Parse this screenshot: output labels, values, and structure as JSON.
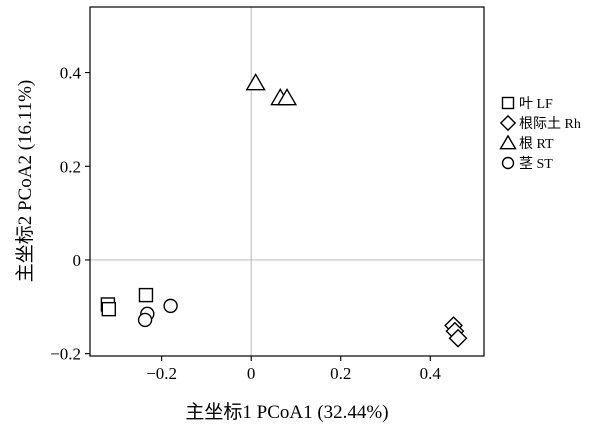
{
  "chart_data": {
    "type": "scatter",
    "xlabel": "主坐标1 PCoA1 (32.44%)",
    "ylabel": "主坐标2 PCoA2 (16.11%)",
    "xlim": [
      -0.36,
      0.52
    ],
    "ylim": [
      -0.205,
      0.54
    ],
    "x_ticks": [
      -0.2,
      0,
      0.2,
      0.4
    ],
    "x_tick_labels": [
      "−0.2",
      "0",
      "0.2",
      "0.4"
    ],
    "y_ticks": [
      -0.2,
      0,
      0.2,
      0.4
    ],
    "y_tick_labels": [
      "−0.2",
      "0",
      "0.2",
      "0.4"
    ],
    "reference_lines": {
      "x": 0,
      "y": 0
    },
    "legend_position": "right",
    "series": [
      {
        "name": "叶 LF",
        "marker": "square",
        "points": [
          [
            -0.32,
            -0.095
          ],
          [
            -0.318,
            -0.105
          ],
          [
            -0.235,
            -0.075
          ]
        ]
      },
      {
        "name": "根际土 Rh",
        "marker": "diamond",
        "points": [
          [
            0.452,
            -0.14
          ],
          [
            0.455,
            -0.152
          ],
          [
            0.462,
            -0.167
          ]
        ]
      },
      {
        "name": "根 RT",
        "marker": "triangle",
        "points": [
          [
            0.01,
            0.378
          ],
          [
            0.065,
            0.346
          ],
          [
            0.08,
            0.346
          ]
        ]
      },
      {
        "name": "茎 ST",
        "marker": "circle",
        "points": [
          [
            -0.18,
            -0.098
          ],
          [
            -0.232,
            -0.115
          ],
          [
            -0.237,
            -0.128
          ]
        ]
      }
    ]
  }
}
